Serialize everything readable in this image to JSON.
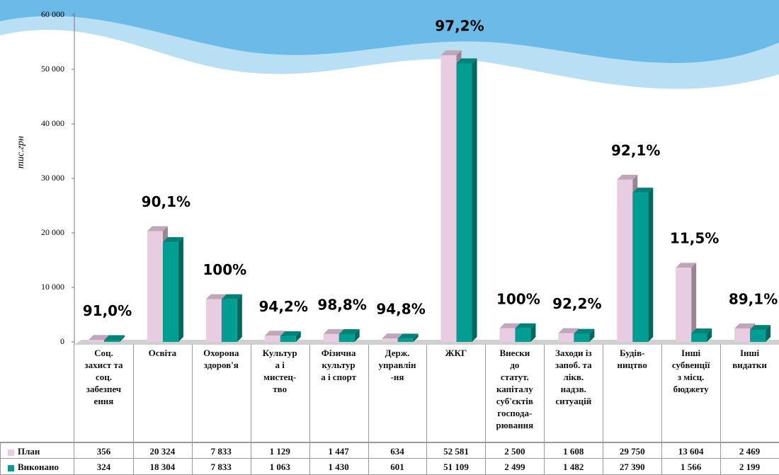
{
  "chart_data": {
    "type": "bar3d",
    "y_label": "тис.грн",
    "categories": [
      "Соц.\nзахист та\nсоц.\nзабезпеч\nення",
      "Освіта",
      "Охорона\nздоров'я",
      "Культур\nа і\nмистец-\nтво",
      "Фізична\nкультур\nа і спорт",
      "Держ.\nуправлін\n-ня",
      "ЖКГ",
      "Внески\nдо\nстатут.\nкапіталу\nсуб'єктів\nгоспода-\nрювання",
      "Заходи із\nзапоб. та\nлікв.\nнадзв.\nситуацій",
      "Будів-\nництво",
      "Інші\nсубвенції\nз місц.\nбюджету",
      "Інші\nвидатки"
    ],
    "series": [
      {
        "name": "План",
        "color": "#e8cce2",
        "values": [
          356,
          20324,
          7833,
          1129,
          1447,
          634,
          52581,
          2500,
          1608,
          29750,
          13604,
          2469
        ],
        "value_labels": [
          "356",
          "20 324",
          "7 833",
          "1 129",
          "1 447",
          "634",
          "52 581",
          "2 500",
          "1 608",
          "29 750",
          "13 604",
          "2 469"
        ]
      },
      {
        "name": "Виконано",
        "color": "#009e92",
        "values": [
          324,
          18304,
          7833,
          1063,
          1430,
          601,
          51109,
          2499,
          1482,
          27390,
          1566,
          2199
        ],
        "value_labels": [
          "324",
          "18 304",
          "7 833",
          "1 063",
          "1 430",
          "601",
          "51 109",
          "2 499",
          "1 482",
          "27 390",
          "1 566",
          "2 199"
        ]
      }
    ],
    "annotations": [
      "91,0%",
      "90,1%",
      "100%",
      "94,2%",
      "98,8%",
      "94,8%",
      "97,2%",
      "100%",
      "92,2%",
      "92,1%",
      "11,5%",
      "89,1%"
    ],
    "ylim": [
      0,
      60000
    ],
    "yticks": [
      {
        "value": 0,
        "label": "0"
      },
      {
        "value": 10000,
        "label": "10 000"
      },
      {
        "value": 20000,
        "label": "20 000"
      },
      {
        "value": 30000,
        "label": "30 000"
      },
      {
        "value": 40000,
        "label": "40 000"
      },
      {
        "value": 50000,
        "label": "50 000"
      },
      {
        "value": 60000,
        "label": "60 000"
      }
    ]
  }
}
